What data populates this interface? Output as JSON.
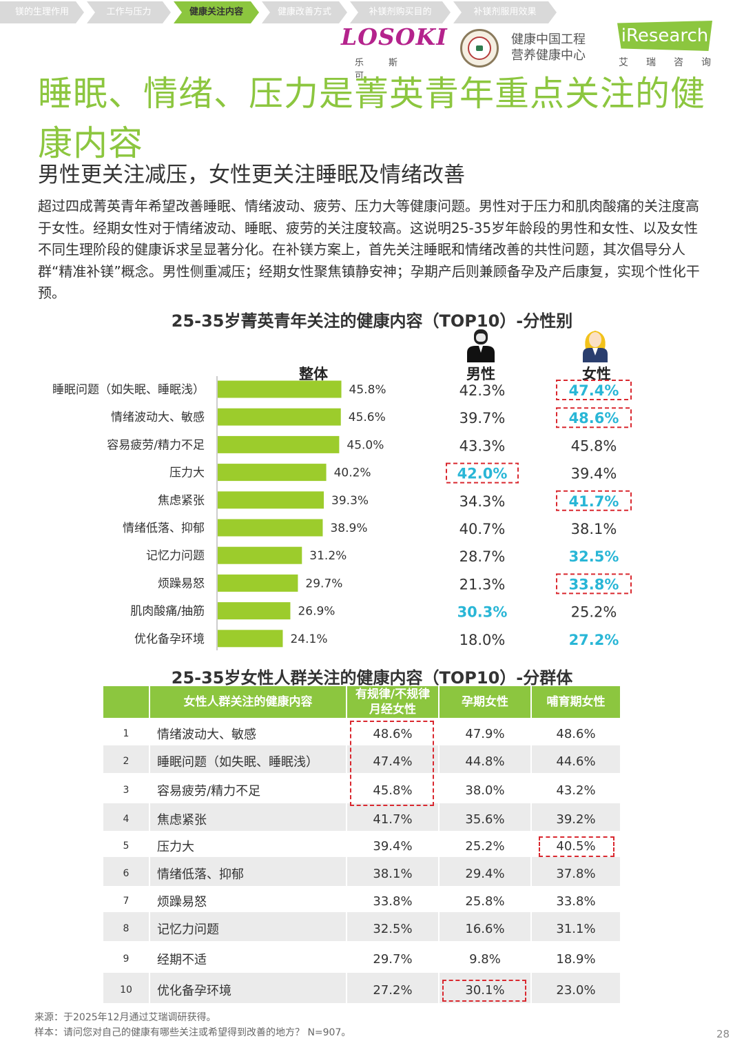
{
  "tabs": [
    "镁的生理作用",
    "工作与压力",
    "健康关注内容",
    "健康改善方式",
    "补镁剂购买目的",
    "补镁剂服用效果"
  ],
  "active_tab": 2,
  "logos": {
    "losoki": "LOSOKI",
    "losoki_sub": "乐斯可",
    "center_line1": "健康中国工程",
    "center_line2": "营养健康中心",
    "iresearch": "iResearch",
    "iresearch_sub": "艾瑞咨询"
  },
  "title": "睡眠、情绪、压力是菁英青年重点关注的健康内容",
  "subtitle": "男性更关注减压，女性更关注睡眠及情绪改善",
  "body": "超过四成菁英青年希望改善睡眠、情绪波动、疲劳、压力大等健康问题。男性对于压力和肌肉酸痛的关注度高于女性。经期女性对于情绪波动、睡眠、疲劳的关注度较高。这说明25-35岁年龄段的男性和女性、以及女性不同生理阶段的健康诉求呈显著分化。在补镁方案上，首先关注睡眠和情绪改善的共性问题，其次倡导分人群“精准补镁”概念。男性侧重减压；经期女性聚焦镇静安神；孕期产后则兼顾备孕及产后康复，实现个性化干预。",
  "chart_data": [
    {
      "type": "bar",
      "orientation": "horizontal",
      "title": "25-35岁菁英青年关注的健康内容（TOP10）-分性别",
      "categories": [
        "睡眠问题（如失眠、睡眠浅）",
        "情绪波动大、敏感",
        "容易疲劳/精力不足",
        "压力大",
        "焦虑紧张",
        "情绪低落、抑郁",
        "记忆力问题",
        "烦躁易怒",
        "肌肉酸痛/抽筋",
        "优化备孕环境"
      ],
      "series": [
        {
          "name": "整体",
          "values": [
            45.8,
            45.6,
            45.0,
            40.2,
            39.3,
            38.9,
            31.2,
            29.7,
            26.9,
            24.1
          ]
        },
        {
          "name": "男性",
          "values": [
            42.3,
            39.7,
            43.3,
            42.0,
            34.3,
            40.7,
            28.7,
            21.3,
            30.3,
            18.0
          ]
        },
        {
          "name": "女性",
          "values": [
            47.4,
            48.6,
            45.8,
            39.4,
            41.7,
            38.1,
            32.5,
            33.8,
            25.2,
            27.2
          ]
        }
      ],
      "labels": {
        "整体": [
          "45.8%",
          "45.6%",
          "45.0%",
          "40.2%",
          "39.3%",
          "38.9%",
          "31.2%",
          "29.7%",
          "26.9%",
          "24.1%"
        ],
        "男性": [
          "42.3%",
          "39.7%",
          "43.3%",
          "42.0%",
          "34.3%",
          "40.7%",
          "28.7%",
          "21.3%",
          "30.3%",
          "18.0%"
        ],
        "女性": [
          "47.4%",
          "48.6%",
          "45.8%",
          "39.4%",
          "41.7%",
          "38.1%",
          "32.5%",
          "33.8%",
          "25.2%",
          "27.2%"
        ]
      },
      "highlight": {
        "男性": [
          3,
          8
        ],
        "女性": [
          0,
          1,
          4,
          6,
          7,
          9
        ]
      },
      "boxed": {
        "男性": [
          3
        ],
        "女性": [
          0,
          1,
          4,
          7
        ]
      },
      "bar_color": "#9ccc2c",
      "highlight_color": "#29b6d6",
      "xlim": [
        0,
        60
      ]
    },
    {
      "type": "table",
      "title": "25-35岁女性人群关注的健康内容（TOP10）-分群体",
      "columns": [
        "女性人群关注的健康内容",
        "有规律/不规律月经女性",
        "孕期女性",
        "哺育期女性"
      ],
      "rows": [
        {
          "rank": "1",
          "item": "情绪波动大、敏感",
          "values": [
            "48.6%",
            "47.9%",
            "48.6%"
          ]
        },
        {
          "rank": "2",
          "item": "睡眠问题（如失眠、睡眠浅）",
          "values": [
            "47.4%",
            "44.8%",
            "44.6%"
          ]
        },
        {
          "rank": "3",
          "item": "容易疲劳/精力不足",
          "values": [
            "45.8%",
            "38.0%",
            "43.2%"
          ]
        },
        {
          "rank": "4",
          "item": "焦虑紧张",
          "values": [
            "41.7%",
            "35.6%",
            "39.2%"
          ]
        },
        {
          "rank": "5",
          "item": "压力大",
          "values": [
            "39.4%",
            "25.2%",
            "40.5%"
          ]
        },
        {
          "rank": "6",
          "item": "情绪低落、抑郁",
          "values": [
            "38.1%",
            "29.4%",
            "37.8%"
          ]
        },
        {
          "rank": "7",
          "item": "烦躁易怒",
          "values": [
            "33.8%",
            "25.8%",
            "33.8%"
          ]
        },
        {
          "rank": "8",
          "item": "记忆力问题",
          "values": [
            "32.5%",
            "16.6%",
            "31.1%"
          ]
        },
        {
          "rank": "9",
          "item": "经期不适",
          "values": [
            "29.7%",
            "9.8%",
            "18.9%"
          ]
        },
        {
          "rank": "10",
          "item": "优化备孕环境",
          "values": [
            "27.2%",
            "30.1%",
            "23.0%"
          ]
        }
      ],
      "header_color": "#8cc63f"
    }
  ],
  "footnote": {
    "source": "来源：于2025年12月通过艾瑞调研获得。",
    "sample": "样本：请问您对自己的健康有哪些关注或希望得到改善的地方？ N=907。"
  },
  "page_number": "28"
}
